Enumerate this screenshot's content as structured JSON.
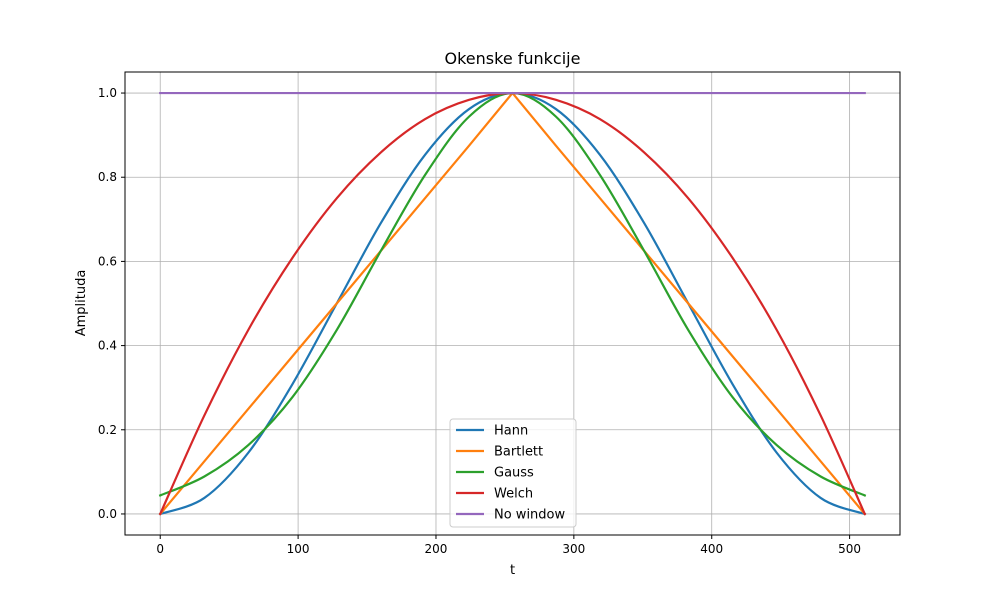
{
  "chart_data": {
    "type": "line",
    "title": "Okenske funkcije",
    "xlabel": "t",
    "ylabel": "Amplituda",
    "xlim": [
      -25.55,
      536.55
    ],
    "ylim": [
      -0.05,
      1.05
    ],
    "xticks": [
      0,
      100,
      200,
      300,
      400,
      500
    ],
    "yticks": [
      0.0,
      0.2,
      0.4,
      0.6,
      0.8,
      1.0
    ],
    "xtick_labels": [
      "0",
      "100",
      "200",
      "300",
      "400",
      "500"
    ],
    "ytick_labels": [
      "0.0",
      "0.2",
      "0.4",
      "0.6",
      "0.8",
      "1.0"
    ],
    "grid": true,
    "legend_position": "lower-center",
    "x": [
      0,
      32,
      64,
      96,
      128,
      160,
      192,
      224,
      255.5,
      287,
      319,
      351,
      383,
      415,
      447,
      479,
      511
    ],
    "series": [
      {
        "name": "Hann",
        "color": "#1f77b4",
        "values": [
          0.0,
          0.038,
          0.146,
          0.309,
          0.5,
          0.691,
          0.853,
          0.962,
          1.0,
          0.962,
          0.853,
          0.691,
          0.5,
          0.309,
          0.146,
          0.038,
          0.0
        ]
      },
      {
        "name": "Bartlett",
        "color": "#ff7f0e",
        "values": [
          0.0,
          0.125,
          0.25,
          0.375,
          0.5,
          0.625,
          0.75,
          0.875,
          1.0,
          0.875,
          0.75,
          0.625,
          0.5,
          0.375,
          0.25,
          0.125,
          0.0
        ]
      },
      {
        "name": "Gauss",
        "color": "#2ca02c",
        "values": [
          0.044,
          0.089,
          0.164,
          0.278,
          0.437,
          0.625,
          0.805,
          0.944,
          1.0,
          0.944,
          0.805,
          0.625,
          0.437,
          0.278,
          0.164,
          0.089,
          0.044
        ]
      },
      {
        "name": "Welch",
        "color": "#d62728",
        "values": [
          0.0,
          0.234,
          0.438,
          0.609,
          0.75,
          0.859,
          0.938,
          0.984,
          1.0,
          0.984,
          0.938,
          0.859,
          0.75,
          0.609,
          0.438,
          0.234,
          0.0
        ]
      },
      {
        "name": "No window",
        "color": "#9467bd",
        "values": [
          1,
          1,
          1,
          1,
          1,
          1,
          1,
          1,
          1,
          1,
          1,
          1,
          1,
          1,
          1,
          1,
          1
        ]
      }
    ]
  }
}
